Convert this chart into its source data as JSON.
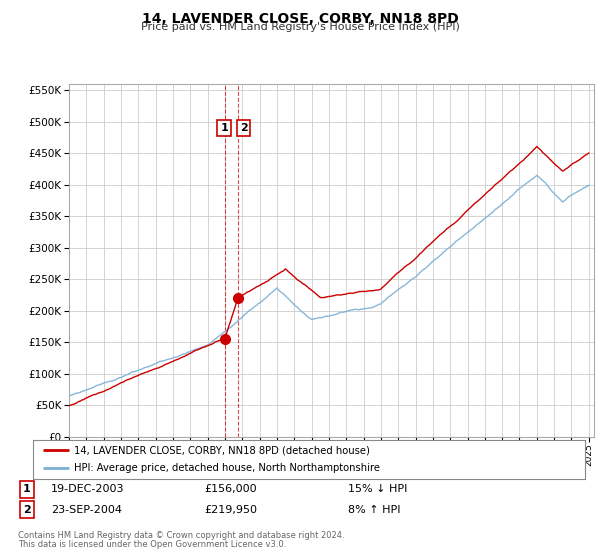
{
  "title": "14, LAVENDER CLOSE, CORBY, NN18 8PD",
  "subtitle": "Price paid vs. HM Land Registry's House Price Index (HPI)",
  "sale1_date": "19-DEC-2003",
  "sale1_price": 156000,
  "sale1_pct": "15% ↓ HPI",
  "sale2_date": "23-SEP-2004",
  "sale2_price": 219950,
  "sale2_pct": "8% ↑ HPI",
  "sale1_x": 2004.0,
  "sale2_x": 2004.73,
  "legend_line1": "14, LAVENDER CLOSE, CORBY, NN18 8PD (detached house)",
  "legend_line2": "HPI: Average price, detached house, North Northamptonshire",
  "footer1": "Contains HM Land Registry data © Crown copyright and database right 2024.",
  "footer2": "This data is licensed under the Open Government Licence v3.0.",
  "line_color_red": "#cc0000",
  "line_color_blue": "#7ab0d4",
  "dashed_line_color": "#cc0000",
  "background_color": "#ffffff",
  "grid_color": "#cccccc",
  "ylim_max": 560000,
  "xmin": 1995,
  "xmax": 2025
}
